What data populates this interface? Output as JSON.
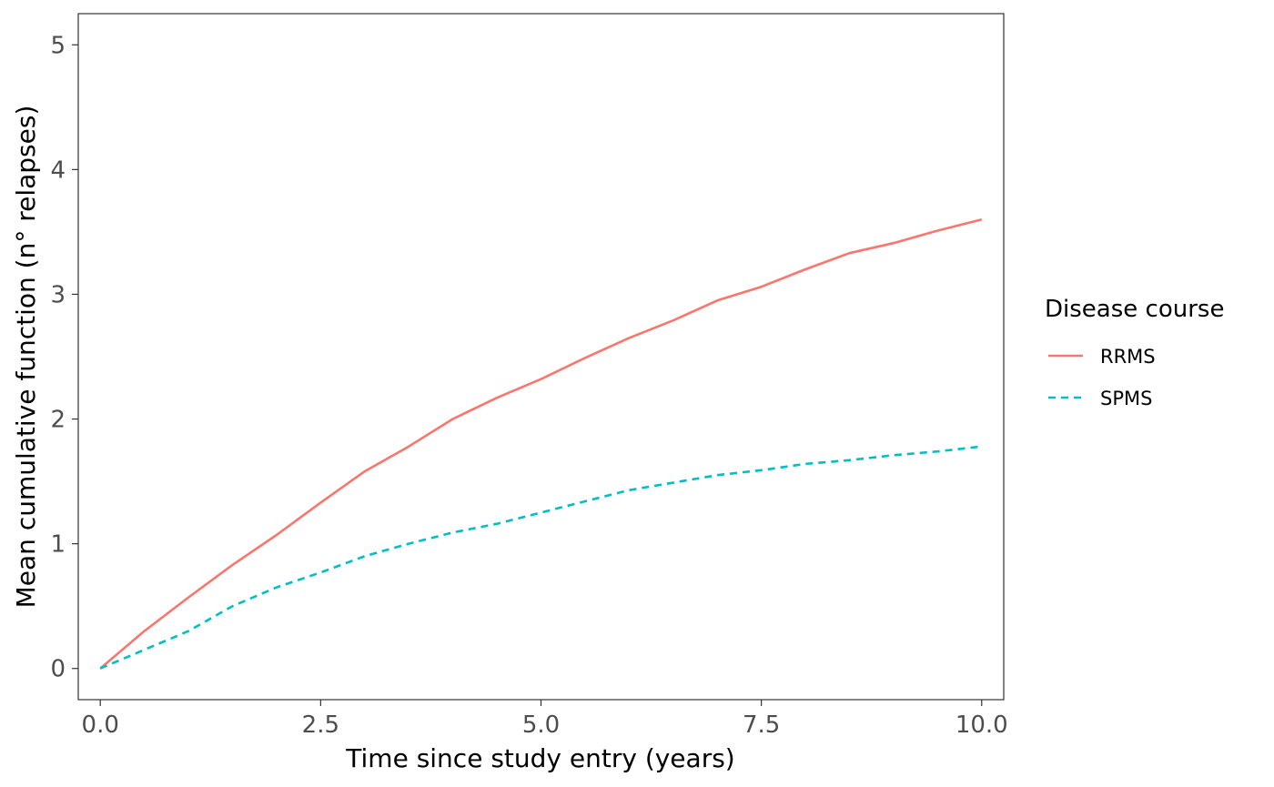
{
  "chart_data": {
    "type": "line",
    "title": "",
    "xlabel": "Time since study entry (years)",
    "ylabel": "Mean cumulative function (n° relapses)",
    "xlim": [
      -0.25,
      10.25
    ],
    "ylim": [
      -0.25,
      5.25
    ],
    "x_ticks": [
      0,
      2.5,
      5,
      7.5,
      10
    ],
    "x_tick_labels": [
      "0.0",
      "2.5",
      "5.0",
      "7.5",
      "10.0"
    ],
    "y_ticks": [
      0,
      1,
      2,
      3,
      4,
      5
    ],
    "y_tick_labels": [
      "0",
      "1",
      "2",
      "3",
      "4",
      "5"
    ],
    "grid": false,
    "legend": {
      "title": "Disease course",
      "placement": "right"
    },
    "series": [
      {
        "name": "RRMS",
        "color": "#F8766D",
        "linestyle": "solid",
        "x": [
          0,
          0.5,
          1,
          1.5,
          2,
          2.5,
          3,
          3.5,
          4,
          4.5,
          5,
          5.5,
          6,
          6.5,
          7,
          7.5,
          8,
          8.5,
          9,
          9.5,
          10
        ],
        "y": [
          0,
          0.3,
          0.57,
          0.83,
          1.07,
          1.33,
          1.58,
          1.78,
          2.0,
          2.17,
          2.32,
          2.49,
          2.65,
          2.79,
          2.95,
          3.06,
          3.2,
          3.33,
          3.41,
          3.51,
          3.6
        ]
      },
      {
        "name": "SPMS",
        "color": "#00BFC4",
        "linestyle": "dashed",
        "x": [
          0,
          0.5,
          1,
          1.5,
          2,
          2.5,
          3,
          3.5,
          4,
          4.5,
          5,
          5.5,
          6,
          6.5,
          7,
          7.5,
          8,
          8.5,
          9,
          9.5,
          10
        ],
        "y": [
          0,
          0.15,
          0.3,
          0.5,
          0.65,
          0.77,
          0.9,
          1.0,
          1.09,
          1.16,
          1.25,
          1.34,
          1.43,
          1.49,
          1.55,
          1.59,
          1.64,
          1.67,
          1.71,
          1.74,
          1.78
        ]
      }
    ]
  }
}
